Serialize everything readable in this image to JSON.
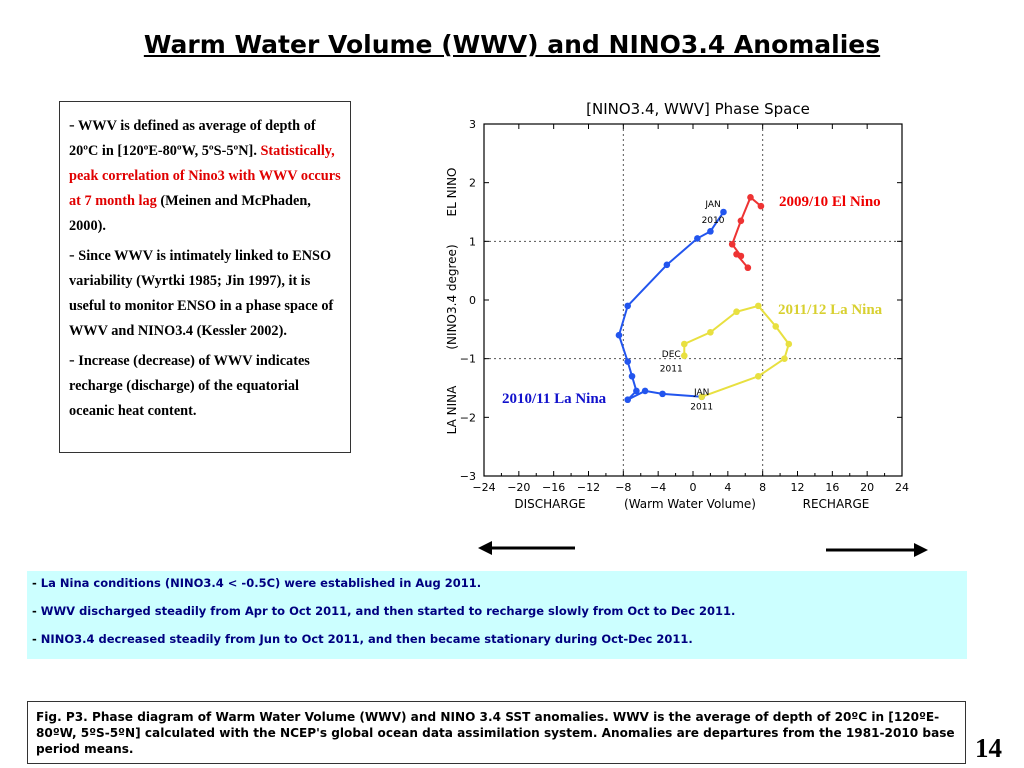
{
  "slide": {
    "title": "Warm Water Volume (WWV) and NINO3.4 Anomalies",
    "page_number": "14"
  },
  "notes": {
    "p1_dash": "-",
    "p1_text": "WWV is defined as average of depth of 20ºC in [120ºE-80ºW, 5ºS-5ºN].",
    "p1_red": "Statistically, peak correlation of Nino3 with WWV occurs at 7 month lag",
    "p1_tail": "(Meinen and McPhaden, 2000).",
    "p2_dash": "-",
    "p2_text": "Since WWV is intimately linked to ENSO variability (Wyrtki 1985; Jin 1997), it is useful to monitor ENSO in a phase space of WWV and NINO3.4 (Kessler 2002).",
    "p3_dash": "-",
    "p3_text": "Increase (decrease) of WWV indicates recharge (discharge) of the equatorial oceanic heat content."
  },
  "bullets": [
    {
      "dash": "-",
      "text": "La Nina conditions (NINO3.4 < -0.5C) were established in Aug 2011."
    },
    {
      "dash": "-",
      "text": "WWV discharged steadily from Apr to Oct 2011, and then started to recharge slowly from Oct to Dec 2011."
    },
    {
      "dash": "-",
      "text": "NINO3.4  decreased steadily from Jun to Oct 2011,  and then became stationary during Oct-Dec 2011."
    }
  ],
  "caption": "Fig. P3. Phase diagram of Warm Water Volume (WWV) and NINO 3.4 SST anomalies. WWV is the average of depth of 20ºC in [120ºE-80ºW, 5ºS-5ºN] calculated with the NCEP's global ocean data assimilation system. Anomalies are departures from the 1981-2010 base period means.",
  "colors": {
    "elnino_2009": "#ee3333",
    "lanina_2010": "#2255ee",
    "lanina_2011": "#e8e040",
    "label_red": "#ee0000",
    "label_blue": "#1111cc",
    "label_yellow": "#d8d030"
  },
  "chart_data": {
    "type": "line",
    "title": "[NINO3.4, WWV] Phase Space",
    "xlabel": "(Warm Water Volume)",
    "xlabel_left": "DISCHARGE",
    "xlabel_right": "RECHARGE",
    "ylabel": "(NINO3.4 degree)",
    "ylabel_top": "EL NINO",
    "ylabel_bottom": "LA NINA",
    "xlim": [
      -24,
      24
    ],
    "ylim": [
      -3,
      3
    ],
    "xticks": [
      -24,
      -20,
      -16,
      -12,
      -8,
      -4,
      0,
      4,
      8,
      12,
      16,
      20,
      24
    ],
    "yticks": [
      -3,
      -2,
      -1,
      0,
      1,
      2,
      3
    ],
    "x_dashed": [
      -8,
      8
    ],
    "y_dashed": [
      -1,
      1
    ],
    "series": [
      {
        "name": "2009/10 El Nino",
        "color_key": "elnino_2009",
        "x": [
          6.3,
          5.0,
          5.5,
          4.5,
          5.5,
          6.6,
          7.8
        ],
        "y": [
          0.55,
          0.78,
          0.75,
          0.95,
          1.35,
          1.75,
          1.6
        ]
      },
      {
        "name": "2010/11 La Nina",
        "color_key": "lanina_2010",
        "x": [
          3.5,
          2.0,
          0.5,
          -3.0,
          -7.5,
          -8.5,
          -7.5,
          -7.0,
          -6.5,
          -7.5,
          -5.5,
          -3.5,
          1.0
        ],
        "y": [
          1.5,
          1.17,
          1.05,
          0.6,
          -0.1,
          -0.6,
          -1.05,
          -1.3,
          -1.55,
          -1.7,
          -1.55,
          -1.6,
          -1.65
        ]
      },
      {
        "name": "2011/12 La Nina",
        "color_key": "lanina_2011",
        "x": [
          1.0,
          7.5,
          10.5,
          11.0,
          9.5,
          7.5,
          5.0,
          2.0,
          -1.0,
          -1.0
        ],
        "y": [
          -1.65,
          -1.3,
          -1.0,
          -0.75,
          -0.45,
          -0.1,
          -0.2,
          -0.55,
          -0.75,
          -0.95
        ]
      }
    ],
    "annotations": [
      {
        "text": "JAN",
        "x": 2.3,
        "y": 1.65,
        "color_key": "none"
      },
      {
        "text": "2010",
        "x": 2.3,
        "y": 1.38,
        "color_key": "none"
      },
      {
        "text": "DEC",
        "x": -2.5,
        "y": -0.9,
        "color_key": "none"
      },
      {
        "text": "2011",
        "x": -2.5,
        "y": -1.15,
        "color_key": "none"
      },
      {
        "text": "JAN",
        "x": 1.0,
        "y": -1.55,
        "color_key": "none"
      },
      {
        "text": "2011",
        "x": 1.0,
        "y": -1.8,
        "color_key": "none"
      }
    ]
  }
}
